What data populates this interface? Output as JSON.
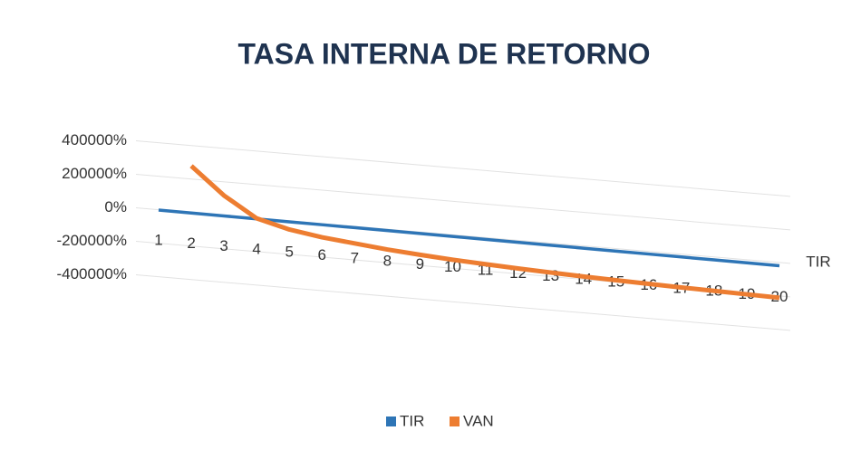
{
  "chart_data": {
    "type": "line",
    "title": "TASA INTERNA DE RETORNO",
    "categories": [
      "1",
      "2",
      "3",
      "4",
      "5",
      "6",
      "7",
      "8",
      "9",
      "10",
      "11",
      "12",
      "13",
      "14",
      "15",
      "16",
      "17",
      "18",
      "19",
      "20"
    ],
    "series": [
      {
        "name": "TIR",
        "color": "#2e75b6",
        "values": [
          0,
          -1000,
          -2000,
          -3000,
          -4000,
          -5000,
          -6000,
          -7000,
          -8000,
          -9000,
          -10000,
          -11000,
          -12000,
          -13000,
          -14000,
          -15000,
          -16000,
          -17000,
          -18000,
          -19000
        ]
      },
      {
        "name": "VAN",
        "color": "#ed7d31",
        "values": [
          null,
          280000,
          120000,
          0,
          -50000,
          -80000,
          -100000,
          -120000,
          -135000,
          -148000,
          -158000,
          -167000,
          -175000,
          -182000,
          -188000,
          -193000,
          -198000,
          -202000,
          -206000,
          -210000
        ]
      }
    ],
    "depth_axis_labels": [
      "TIR"
    ],
    "ylim": [
      -400000,
      400000
    ],
    "yticks": [
      {
        "value": 400000,
        "label": "400000%"
      },
      {
        "value": 200000,
        "label": "200000%"
      },
      {
        "value": 0,
        "label": "0%"
      },
      {
        "value": -200000,
        "label": "-200000%"
      },
      {
        "value": -400000,
        "label": "-400000%"
      }
    ],
    "grid": true,
    "legend": "bottom"
  }
}
